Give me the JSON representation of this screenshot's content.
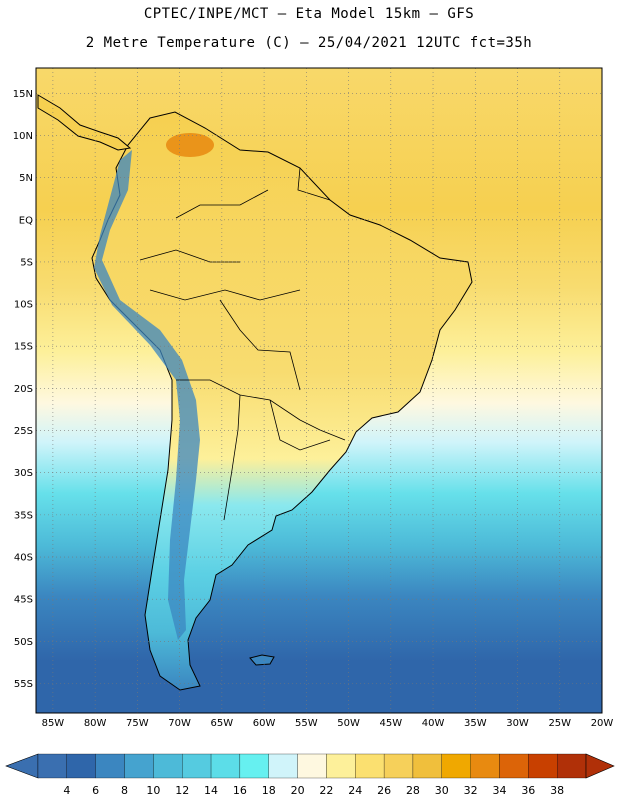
{
  "title_line1": "CPTEC/INPE/MCT –  Eta Model 15km – GFS",
  "title_line2": "2 Metre Temperature (C) – 25/04/2021 12UTC fct=35h",
  "lat_labels": [
    "15N",
    "10N",
    "5N",
    "EQ",
    "5S",
    "10S",
    "15S",
    "20S",
    "25S",
    "30S",
    "35S",
    "40S",
    "45S",
    "50S",
    "55S"
  ],
  "lat_values": [
    15,
    10,
    5,
    0,
    -5,
    -10,
    -15,
    -20,
    -25,
    -30,
    -35,
    -40,
    -45,
    -50,
    -55
  ],
  "lon_labels": [
    "85W",
    "80W",
    "75W",
    "70W",
    "65W",
    "60W",
    "55W",
    "50W",
    "45W",
    "40W",
    "35W",
    "30W",
    "25W",
    "20W"
  ],
  "lon_values": [
    -85,
    -80,
    -75,
    -70,
    -65,
    -60,
    -55,
    -50,
    -45,
    -40,
    -35,
    -30,
    -25,
    -20
  ],
  "colorbar": {
    "levels": [
      "4",
      "6",
      "8",
      "10",
      "12",
      "14",
      "16",
      "18",
      "20",
      "22",
      "24",
      "26",
      "28",
      "30",
      "32",
      "34",
      "36",
      "38"
    ],
    "colors": [
      "#3a6fb0",
      "#2f66aa",
      "#3b86c0",
      "#45a3cf",
      "#4dbad8",
      "#55cbe0",
      "#5cdde8",
      "#66f0f0",
      "#d0f4fa",
      "#fef8e0",
      "#fdf09a",
      "#fbe070",
      "#f6d05a",
      "#f0bf3c",
      "#f0a800",
      "#e88a10",
      "#dc6408",
      "#c84000",
      "#b03008"
    ],
    "under_color": "#3a6fb0",
    "over_color": "#b03008"
  }
}
